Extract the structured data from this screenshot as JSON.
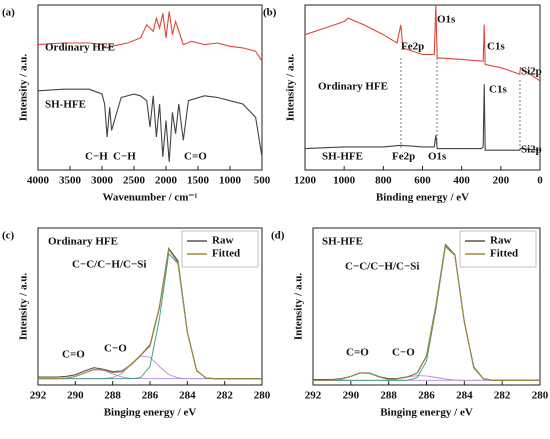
{
  "chart_data": [
    {
      "type": "line",
      "panel_label": "(a)",
      "xlabel": "Wavenumber / cm⁻¹",
      "ylabel": "Intensity / a.u.",
      "xlim": [
        4000,
        500
      ],
      "xticks": [
        4000,
        3500,
        3000,
        2500,
        2000,
        1500,
        1000,
        500
      ],
      "ylim": [
        0,
        100
      ],
      "annotations": [
        "C−H",
        "C−H",
        "C=O"
      ],
      "series": [
        {
          "name": "Ordinary HFE",
          "color": "#e0453a",
          "x": [
            4000,
            3600,
            3200,
            3000,
            2920,
            2850,
            2600,
            2400,
            2300,
            2200,
            2150,
            2100,
            2050,
            2000,
            1950,
            1900,
            1850,
            1730,
            1600,
            1400,
            1200,
            1000,
            800,
            600,
            500
          ],
          "values": [
            76,
            77,
            77,
            76,
            74,
            75,
            77,
            80,
            88,
            84,
            92,
            86,
            95,
            80,
            96,
            82,
            90,
            76,
            78,
            76,
            77,
            75,
            74,
            72,
            66
          ]
        },
        {
          "name": "SH-HFE",
          "color": "#444444",
          "x": [
            4000,
            3600,
            3200,
            3000,
            2960,
            2920,
            2880,
            2850,
            2700,
            2500,
            2400,
            2300,
            2250,
            2200,
            2150,
            2100,
            2050,
            2000,
            1950,
            1900,
            1850,
            1800,
            1730,
            1650,
            1400,
            1200,
            1000,
            800,
            600,
            500
          ],
          "values": [
            48,
            49,
            49,
            46,
            40,
            20,
            38,
            24,
            44,
            46,
            45,
            42,
            26,
            45,
            20,
            40,
            8,
            30,
            5,
            35,
            22,
            40,
            18,
            42,
            45,
            44,
            42,
            40,
            32,
            8
          ]
        }
      ]
    },
    {
      "type": "line",
      "panel_label": "(b)",
      "xlabel": "Binding energy / eV",
      "ylabel": "Intensity / a.u.",
      "xlim": [
        1200,
        0
      ],
      "xticks": [
        1200,
        1000,
        800,
        600,
        400,
        200,
        0
      ],
      "ylim": [
        0,
        100
      ],
      "annotations": [
        "Fe2p",
        "O1s",
        "C1s",
        "Si2p",
        "Fe2p",
        "O1s",
        "C1s",
        "Si2p"
      ],
      "series": [
        {
          "name": "Ordinary HFE",
          "color": "#e0453a",
          "x": [
            1200,
            1100,
            1000,
            980,
            900,
            800,
            730,
            711,
            700,
            600,
            540,
            532,
            525,
            400,
            300,
            290,
            285,
            280,
            200,
            150,
            103,
            100,
            50,
            0
          ],
          "values": [
            82,
            86,
            90,
            92,
            88,
            82,
            77,
            88,
            74,
            70,
            70,
            100,
            68,
            67,
            66,
            66,
            88,
            64,
            62,
            60,
            58,
            62,
            58,
            54
          ]
        },
        {
          "name": "SH-HFE",
          "color": "#444444",
          "x": [
            1200,
            1000,
            800,
            711,
            600,
            540,
            532,
            525,
            400,
            300,
            290,
            285,
            280,
            200,
            103,
            100,
            0
          ],
          "values": [
            13,
            14,
            14,
            15,
            14,
            14,
            21,
            13,
            13,
            13,
            14,
            52,
            12,
            12,
            12,
            13,
            12
          ]
        }
      ]
    },
    {
      "type": "line",
      "panel_label": "(c)",
      "title": "Ordinary HFE",
      "xlabel": "Binging energy / eV",
      "ylabel": "Intensity / a.u.",
      "xlim": [
        292,
        280
      ],
      "xticks": [
        292,
        290,
        288,
        286,
        284,
        282,
        280
      ],
      "ylim": [
        0,
        100
      ],
      "legend": "upper right",
      "annotations": [
        "C−C/C−H/C−Si",
        "C−O",
        "C=O"
      ],
      "x": [
        292,
        291.5,
        291,
        290.5,
        290,
        289.5,
        289,
        288.5,
        288,
        287.5,
        287,
        286.5,
        286,
        285.5,
        285,
        284.5,
        284,
        283.5,
        283,
        282.5,
        282,
        281.5,
        281,
        280.5,
        280
      ],
      "series": [
        {
          "color": "#b98ade",
          "values": [
            4,
            4,
            4,
            4,
            4,
            4,
            4,
            4,
            4.8,
            7.4,
            13.1,
            18.4,
            17.7,
            11.8,
            6.7,
            4.6,
            4,
            4,
            4,
            4,
            4,
            4,
            4,
            4,
            4
          ]
        },
        {
          "color": "#b98ade",
          "values": [
            4,
            4,
            4,
            4.3,
            5.4,
            7.7,
            9.8,
            9.5,
            7.1,
            5.1,
            4.2,
            4,
            4,
            4,
            4,
            4,
            4,
            4,
            4,
            4,
            4,
            4,
            4,
            4,
            4
          ]
        },
        {
          "color": "#2e9a7e",
          "values": [
            4,
            4,
            4,
            4,
            4,
            4,
            4,
            4,
            4,
            4,
            4,
            4.7,
            11.9,
            41.8,
            83.6,
            77.3,
            33.5,
            9.2,
            4.4,
            4,
            4,
            4,
            4,
            4,
            4
          ]
        },
        {
          "name": "Raw",
          "color": "#555555",
          "values": [
            5,
            5,
            5,
            5.5,
            6.5,
            9,
            11,
            10,
            8.5,
            9,
            13,
            19,
            25,
            49,
            87,
            79,
            34,
            9,
            4.5,
            4,
            4,
            4,
            4,
            4,
            4
          ]
        },
        {
          "name": "Fitted",
          "color": "#a08a3a",
          "values": [
            4,
            4,
            4,
            4.3,
            5.4,
            7.7,
            9.8,
            9.5,
            7.9,
            8.5,
            13.3,
            19.1,
            25.6,
            49.6,
            86.3,
            77.9,
            33.5,
            9.2,
            4.4,
            4,
            4,
            4,
            4,
            4,
            4
          ]
        }
      ]
    },
    {
      "type": "line",
      "panel_label": "(d)",
      "title": "SH-HFE",
      "xlabel": "Binging energy / eV",
      "ylabel": "Intensity / a.u.",
      "xlim": [
        292,
        280
      ],
      "xticks": [
        292,
        290,
        288,
        286,
        284,
        282,
        280
      ],
      "ylim": [
        0,
        100
      ],
      "legend": "upper right",
      "annotations": [
        "C−C/C−H/C−Si",
        "C−O",
        "C=O"
      ],
      "x": [
        292,
        291.5,
        291,
        290.5,
        290,
        289.5,
        289,
        288.5,
        288,
        287.5,
        287,
        286.5,
        286,
        285.5,
        285,
        284.5,
        284,
        283.5,
        283,
        282.5,
        282,
        281.5,
        281,
        280.5,
        280
      ],
      "series": [
        {
          "color": "#b98ade",
          "values": [
            3,
            3,
            3,
            3,
            3,
            3,
            3,
            3,
            3,
            4,
            5,
            5.9,
            5.8,
            4.8,
            3.8,
            3.2,
            3,
            3,
            3,
            3,
            3,
            3,
            3,
            3,
            3
          ]
        },
        {
          "color": "#b98ade",
          "values": [
            3,
            3,
            3,
            3.7,
            5.5,
            7.7,
            7.4,
            5.1,
            3.5,
            3,
            3,
            3,
            3,
            3,
            3,
            3,
            3,
            3,
            3,
            3,
            3,
            3,
            3,
            3,
            3
          ]
        },
        {
          "color": "#2e9a7e",
          "values": [
            3,
            3,
            3,
            3,
            3,
            3,
            3,
            3,
            3,
            3,
            3,
            4.6,
            15.2,
            48.6,
            88.1,
            82.4,
            40,
            11.6,
            4,
            3,
            3,
            3,
            3,
            3,
            3
          ]
        },
        {
          "name": "Raw",
          "color": "#555555",
          "values": [
            3.5,
            3.5,
            3.5,
            4,
            5.5,
            7.8,
            7.5,
            5.3,
            4,
            4.2,
            5.2,
            7.6,
            18.5,
            51,
            89.5,
            83,
            40.5,
            11,
            4,
            3,
            3,
            3,
            3,
            3,
            3
          ]
        },
        {
          "name": "Fitted",
          "color": "#a08a3a",
          "values": [
            3,
            3,
            3,
            3.7,
            5.5,
            7.7,
            7.4,
            5.1,
            3.5,
            4,
            5,
            7.5,
            18,
            50.4,
            88.9,
            82.6,
            40,
            11.6,
            4,
            3,
            3,
            3,
            3,
            3,
            3
          ]
        }
      ]
    }
  ]
}
